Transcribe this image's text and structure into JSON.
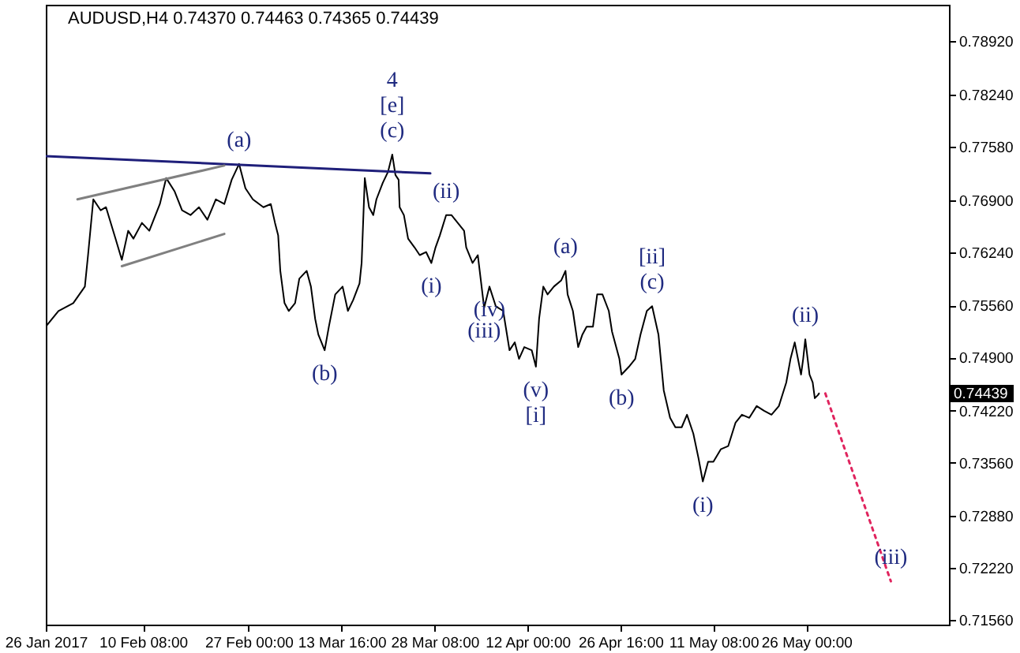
{
  "chart_data": {
    "type": "line",
    "title": "AUDUSD,H4  0.74370 0.74463 0.74365 0.74439",
    "xlim": [
      "2017-01-26T00:00",
      "2017-06-17T12:00"
    ],
    "xticks": [
      {
        "value": "2017-01-26T00:00",
        "label": "26 Jan 2017"
      },
      {
        "value": "2017-02-10T08:00",
        "label": "10 Feb 08:00"
      },
      {
        "value": "2017-02-27T00:00",
        "label": "27 Feb 00:00"
      },
      {
        "value": "2017-03-13T16:00",
        "label": "13 Mar 16:00"
      },
      {
        "value": "2017-03-28T08:00",
        "label": "28 Mar 08:00"
      },
      {
        "value": "2017-04-12T00:00",
        "label": "12 Apr 00:00"
      },
      {
        "value": "2017-04-26T16:00",
        "label": "26 Apr 16:00"
      },
      {
        "value": "2017-05-11T08:00",
        "label": "11 May 08:00"
      },
      {
        "value": "2017-05-26T00:00",
        "label": "26 May 00:00"
      }
    ],
    "ylim": [
      0.71499,
      0.79386
    ],
    "yticks": [
      {
        "value": 0.7156,
        "label": "0.71560"
      },
      {
        "value": 0.7222,
        "label": "0.72220"
      },
      {
        "value": 0.7288,
        "label": "0.72880"
      },
      {
        "value": 0.7356,
        "label": "0.73560"
      },
      {
        "value": 0.7422,
        "label": "0.74220"
      },
      {
        "value": 0.749,
        "label": "0.74900"
      },
      {
        "value": 0.7556,
        "label": "0.75560"
      },
      {
        "value": 0.7624,
        "label": "0.76240"
      },
      {
        "value": 0.769,
        "label": "0.76900"
      },
      {
        "value": 0.7758,
        "label": "0.77580"
      },
      {
        "value": 0.7824,
        "label": "0.78240"
      },
      {
        "value": 0.7892,
        "label": "0.78920"
      }
    ],
    "series": [
      {
        "color": "#000000",
        "line_style": "solid",
        "x": [
          "2017-01-26T00:00",
          "2017-01-28T00:00",
          "2017-01-30T08:00",
          "2017-02-01T04:00",
          "2017-02-01T16:00",
          "2017-02-02T12:00",
          "2017-02-03T16:00",
          "2017-02-04T12:00",
          "2017-02-06T00:00",
          "2017-02-07T00:00",
          "2017-02-08T00:00",
          "2017-02-08T20:00",
          "2017-02-10T04:00",
          "2017-02-11T08:00",
          "2017-02-13T00:00",
          "2017-02-14T00:00",
          "2017-02-15T08:00",
          "2017-02-16T12:00",
          "2017-02-17T20:00",
          "2017-02-19T04:00",
          "2017-02-20T12:00",
          "2017-02-21T20:00",
          "2017-02-23T04:00",
          "2017-02-24T08:00",
          "2017-02-25T12:00",
          "2017-02-26T12:00",
          "2017-02-27T16:00",
          "2017-03-01T08:00",
          "2017-03-02T12:00",
          "2017-03-03T04:00",
          "2017-03-03T16:00",
          "2017-03-04T00:00",
          "2017-03-04T16:00",
          "2017-03-05T08:00",
          "2017-03-06T08:00",
          "2017-03-07T00:00",
          "2017-03-08T04:00",
          "2017-03-08T20:00",
          "2017-03-09T12:00",
          "2017-03-10T00:00",
          "2017-03-11T00:00",
          "2017-03-11T16:00",
          "2017-03-12T16:00",
          "2017-03-13T20:00",
          "2017-03-14T16:00",
          "2017-03-15T12:00",
          "2017-03-16T12:00",
          "2017-03-16T20:00",
          "2017-03-17T08:00",
          "2017-03-18T00:00",
          "2017-03-18T16:00",
          "2017-03-19T04:00",
          "2017-03-20T04:00",
          "2017-03-21T00:00",
          "2017-03-21T16:00",
          "2017-03-22T04:00",
          "2017-03-22T16:00",
          "2017-03-22T20:00",
          "2017-03-23T12:00",
          "2017-03-24T04:00",
          "2017-03-25T04:00",
          "2017-03-26T00:00",
          "2017-03-27T00:00",
          "2017-03-27T20:00",
          "2017-03-28T12:00",
          "2017-03-29T04:00",
          "2017-03-30T04:00",
          "2017-03-31T00:00",
          "2017-04-01T00:00",
          "2017-04-02T00:00",
          "2017-04-02T08:00",
          "2017-04-03T08:00",
          "2017-04-04T04:00",
          "2017-04-05T04:00",
          "2017-04-06T00:00",
          "2017-04-07T00:00",
          "2017-04-08T04:00",
          "2017-04-09T04:00",
          "2017-04-10T00:00",
          "2017-04-10T16:00",
          "2017-04-11T12:00",
          "2017-04-12T16:00",
          "2017-04-13T08:00",
          "2017-04-13T20:00",
          "2017-04-14T12:00",
          "2017-04-15T04:00",
          "2017-04-16T04:00",
          "2017-04-17T08:00",
          "2017-04-18T00:00",
          "2017-04-18T08:00",
          "2017-04-19T04:00",
          "2017-04-20T00:00",
          "2017-04-20T16:00",
          "2017-04-21T08:00",
          "2017-04-22T08:00",
          "2017-04-23T00:00",
          "2017-04-23T20:00",
          "2017-04-24T20:00",
          "2017-04-25T08:00",
          "2017-04-26T12:00",
          "2017-04-26T20:00",
          "2017-04-28T00:00",
          "2017-04-29T00:00",
          "2017-04-29T20:00",
          "2017-04-30T20:00",
          "2017-05-01T16:00",
          "2017-05-02T16:00",
          "2017-05-03T12:00",
          "2017-05-04T12:00",
          "2017-05-05T08:00",
          "2017-05-06T08:00",
          "2017-05-07T04:00",
          "2017-05-08T04:00",
          "2017-05-09T00:00",
          "2017-05-09T16:00",
          "2017-05-10T12:00",
          "2017-05-11T08:00",
          "2017-05-12T12:00",
          "2017-05-13T16:00",
          "2017-05-14T20:00",
          "2017-05-15T20:00",
          "2017-05-17T00:00",
          "2017-05-18T04:00",
          "2017-05-19T08:00",
          "2017-05-20T12:00",
          "2017-05-21T16:00",
          "2017-05-22T20:00",
          "2017-05-23T12:00",
          "2017-05-24T04:00",
          "2017-05-25T04:00",
          "2017-05-25T12:00",
          "2017-05-25T20:00",
          "2017-05-26T12:00",
          "2017-05-27T00:00",
          "2017-05-27T08:00",
          "2017-05-27T20:00",
          "2017-05-28T00:00"
        ],
        "values": [
          0.7529,
          0.7549,
          0.7559,
          0.758,
          0.762,
          0.7691,
          0.7677,
          0.7681,
          0.7641,
          0.7614,
          0.7651,
          0.7641,
          0.7661,
          0.7651,
          0.7685,
          0.7718,
          0.7701,
          0.7677,
          0.7671,
          0.7681,
          0.7665,
          0.7691,
          0.7685,
          0.7716,
          0.7736,
          0.7705,
          0.7691,
          0.7681,
          0.7685,
          0.7661,
          0.7645,
          0.76,
          0.7559,
          0.7549,
          0.7559,
          0.759,
          0.76,
          0.758,
          0.7539,
          0.7519,
          0.7499,
          0.7529,
          0.757,
          0.758,
          0.7549,
          0.7563,
          0.7584,
          0.761,
          0.7718,
          0.7681,
          0.7671,
          0.7691,
          0.7712,
          0.7726,
          0.7748,
          0.7722,
          0.7716,
          0.7681,
          0.7671,
          0.7641,
          0.763,
          0.762,
          0.7624,
          0.761,
          0.763,
          0.7645,
          0.7671,
          0.7671,
          0.7661,
          0.7651,
          0.763,
          0.761,
          0.762,
          0.7553,
          0.758,
          0.7555,
          0.7549,
          0.7499,
          0.7509,
          0.7488,
          0.7503,
          0.7499,
          0.7478,
          0.7539,
          0.758,
          0.757,
          0.758,
          0.7588,
          0.76,
          0.757,
          0.7549,
          0.7503,
          0.7519,
          0.7529,
          0.7529,
          0.757,
          0.757,
          0.7549,
          0.7523,
          0.7488,
          0.7468,
          0.7478,
          0.7488,
          0.7519,
          0.7549,
          0.7555,
          0.7519,
          0.7448,
          0.7413,
          0.7401,
          0.7401,
          0.7417,
          0.7393,
          0.7361,
          0.7332,
          0.7357,
          0.7357,
          0.7373,
          0.7377,
          0.7407,
          0.7417,
          0.7413,
          0.7428,
          0.7422,
          0.7417,
          0.7428,
          0.7458,
          0.7488,
          0.7509,
          0.7468,
          0.7488,
          0.7513,
          0.7468,
          0.7458,
          0.7438,
          0.7442,
          0.7444
        ]
      },
      {
        "color": "#1f1f7a",
        "line_style": "solid",
        "x": [
          "2017-01-26T00:00",
          "2017-03-27T16:00"
        ],
        "values": [
          0.7746,
          0.7724
        ]
      },
      {
        "color": "#808080",
        "line_style": "solid",
        "x": [
          "2017-01-31T00:00",
          "2017-02-23T04:00"
        ],
        "values": [
          0.7691,
          0.7734
        ]
      },
      {
        "color": "#808080",
        "line_style": "solid",
        "x": [
          "2017-02-07T00:00",
          "2017-02-23T04:00"
        ],
        "values": [
          0.7606,
          0.7647
        ]
      },
      {
        "color": "#e0245e",
        "line_style": "dotted",
        "x": [
          "2017-05-29T00:00",
          "2017-06-08T08:00"
        ],
        "values": [
          0.7444,
          0.7205
        ]
      }
    ],
    "annotations": [
      {
        "text": "4",
        "x": "2017-03-21T16:00",
        "y": 0.7748
      },
      {
        "text": "[e]",
        "x": "2017-03-21T16:00",
        "y": 0.7748
      },
      {
        "text": "(c)",
        "x": "2017-03-21T16:00",
        "y": 0.7748
      },
      {
        "text": "(a)",
        "x": "2017-02-25T12:00",
        "y": 0.7736
      },
      {
        "text": "(b)",
        "x": "2017-03-11T00:00",
        "y": 0.7499
      },
      {
        "text": "(i)",
        "x": "2017-03-27T20:00",
        "y": 0.761
      },
      {
        "text": "(ii)",
        "x": "2017-03-30T04:00",
        "y": 0.7671
      },
      {
        "text": "(iii)",
        "x": "2017-04-05T04:00",
        "y": 0.7553
      },
      {
        "text": "(iv)",
        "x": "2017-04-06T00:00",
        "y": 0.758
      },
      {
        "text": "(v)",
        "x": "2017-04-13T08:00",
        "y": 0.7478
      },
      {
        "text": "[i]",
        "x": "2017-04-13T08:00",
        "y": 0.7478
      },
      {
        "text": "(a)",
        "x": "2017-04-18T00:00",
        "y": 0.76
      },
      {
        "text": "[ii]",
        "x": "2017-05-01T16:00",
        "y": 0.7555
      },
      {
        "text": "(c)",
        "x": "2017-05-01T16:00",
        "y": 0.7555
      },
      {
        "text": "(b)",
        "x": "2017-04-26T20:00",
        "y": 0.7468
      },
      {
        "text": "(i)",
        "x": "2017-05-09T16:00",
        "y": 0.7332
      },
      {
        "text": "(ii)",
        "x": "2017-05-25T20:00",
        "y": 0.7513
      },
      {
        "text": "(iii)",
        "x": "2017-06-08T08:00",
        "y": 0.7205
      },
      "0.74439"
    ],
    "grid": false
  }
}
